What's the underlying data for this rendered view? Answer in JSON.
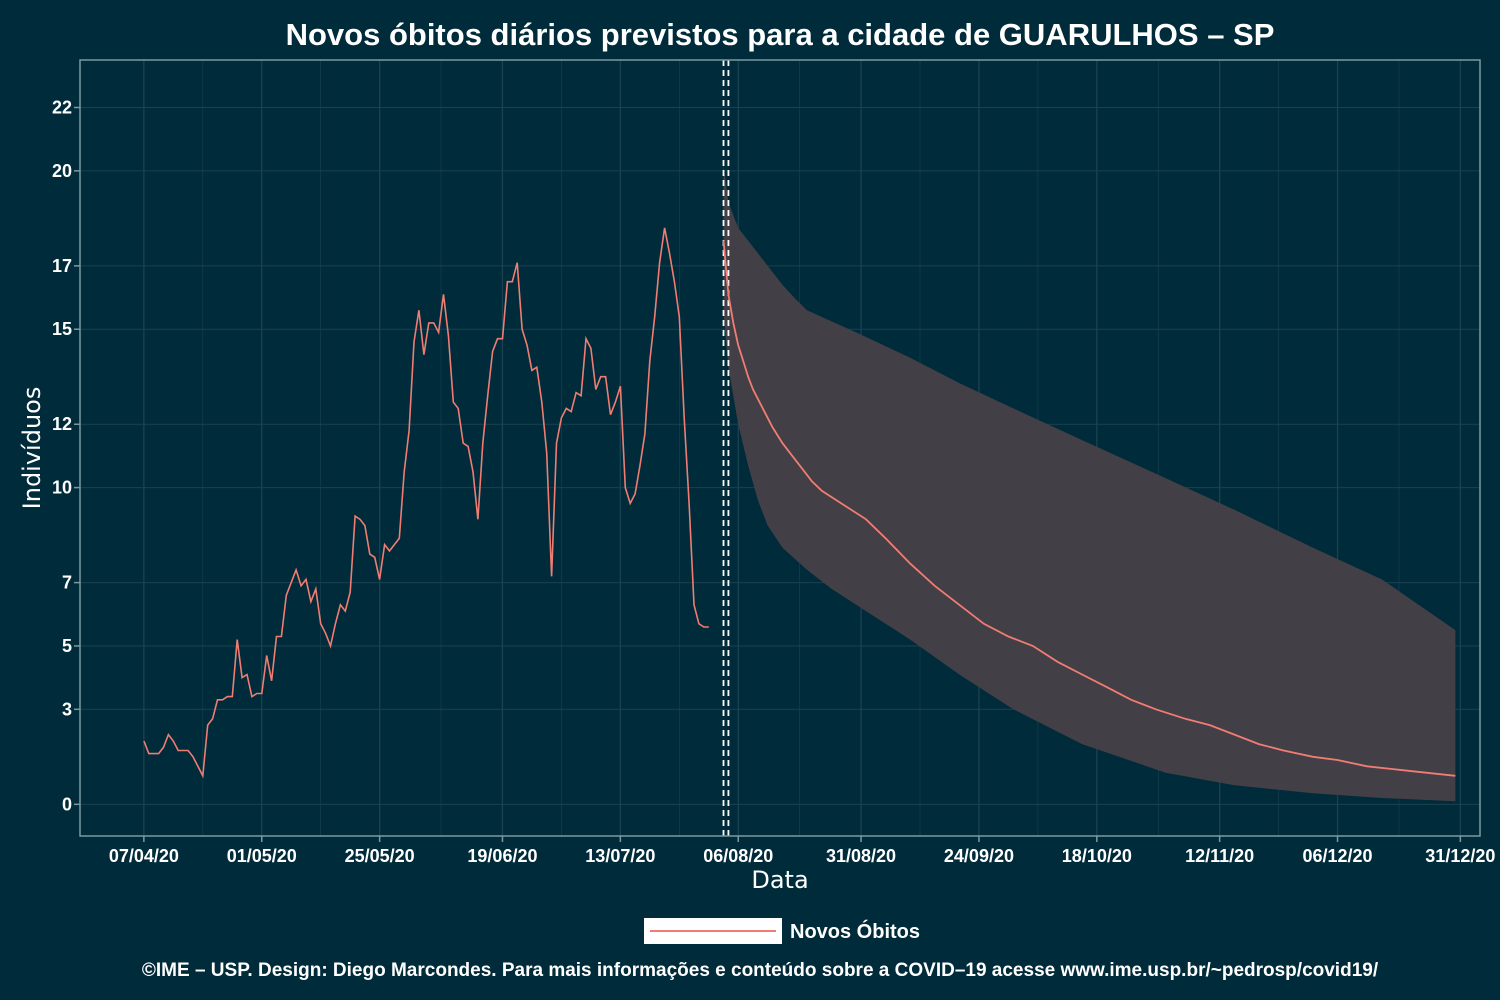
{
  "chart_data": {
    "type": "line",
    "title": "Novos óbitos diários previstos para a cidade de GUARULHOS – SP",
    "xlabel": "Data",
    "ylabel": "Indivíduos",
    "x_date_format": "dd/mm/yy",
    "xlim": [
      "2020-03-25",
      "2021-01-04"
    ],
    "ylim": [
      -1,
      23.5
    ],
    "x_ticks": [
      {
        "date": "2020-04-07",
        "label": "07/04/20"
      },
      {
        "date": "2020-05-01",
        "label": "01/05/20"
      },
      {
        "date": "2020-05-25",
        "label": "25/05/20"
      },
      {
        "date": "2020-06-19",
        "label": "19/06/20"
      },
      {
        "date": "2020-07-13",
        "label": "13/07/20"
      },
      {
        "date": "2020-08-06",
        "label": "06/08/20"
      },
      {
        "date": "2020-08-31",
        "label": "31/08/20"
      },
      {
        "date": "2020-09-24",
        "label": "24/09/20"
      },
      {
        "date": "2020-10-18",
        "label": "18/10/20"
      },
      {
        "date": "2020-11-12",
        "label": "12/11/20"
      },
      {
        "date": "2020-12-06",
        "label": "06/12/20"
      },
      {
        "date": "2020-12-31",
        "label": "31/12/20"
      }
    ],
    "y_ticks": [
      {
        "value": 0,
        "label": "0"
      },
      {
        "value": 3,
        "label": "3"
      },
      {
        "value": 5,
        "label": "5"
      },
      {
        "value": 7,
        "label": "7"
      },
      {
        "value": 10,
        "label": "10"
      },
      {
        "value": 12,
        "label": "12"
      },
      {
        "value": 15,
        "label": "15"
      },
      {
        "value": 17,
        "label": "17"
      },
      {
        "value": 20,
        "label": "20"
      },
      {
        "value": 22,
        "label": "22"
      }
    ],
    "vlines": [
      "2020-08-03",
      "2020-08-04"
    ],
    "legend": {
      "position": "bottom",
      "label": "Novos Óbitos"
    },
    "colors": {
      "background": "#002b3a",
      "line": "#f07d73",
      "band": "#433f46",
      "grid": "#1b4250",
      "axis": "#7b9aa0",
      "vline": "#ffffff"
    },
    "series": [
      {
        "name": "Novos Óbitos",
        "points": [
          [
            "2020-04-07",
            2.0
          ],
          [
            "2020-04-08",
            1.6
          ],
          [
            "2020-04-09",
            1.6
          ],
          [
            "2020-04-10",
            1.6
          ],
          [
            "2020-04-11",
            1.8
          ],
          [
            "2020-04-12",
            2.2
          ],
          [
            "2020-04-13",
            2.0
          ],
          [
            "2020-04-14",
            1.7
          ],
          [
            "2020-04-15",
            1.7
          ],
          [
            "2020-04-16",
            1.7
          ],
          [
            "2020-04-17",
            1.5
          ],
          [
            "2020-04-18",
            1.2
          ],
          [
            "2020-04-19",
            0.9
          ],
          [
            "2020-04-20",
            2.5
          ],
          [
            "2020-04-21",
            2.7
          ],
          [
            "2020-04-22",
            3.3
          ],
          [
            "2020-04-23",
            3.3
          ],
          [
            "2020-04-24",
            3.4
          ],
          [
            "2020-04-25",
            3.4
          ],
          [
            "2020-04-26",
            5.2
          ],
          [
            "2020-04-27",
            4.0
          ],
          [
            "2020-04-28",
            4.1
          ],
          [
            "2020-04-29",
            3.4
          ],
          [
            "2020-04-30",
            3.5
          ],
          [
            "2020-05-01",
            3.5
          ],
          [
            "2020-05-02",
            4.7
          ],
          [
            "2020-05-03",
            3.9
          ],
          [
            "2020-05-04",
            5.3
          ],
          [
            "2020-05-05",
            5.3
          ],
          [
            "2020-05-06",
            6.6
          ],
          [
            "2020-05-07",
            7.0
          ],
          [
            "2020-05-08",
            7.4
          ],
          [
            "2020-05-09",
            6.9
          ],
          [
            "2020-05-10",
            7.1
          ],
          [
            "2020-05-11",
            6.4
          ],
          [
            "2020-05-12",
            6.8
          ],
          [
            "2020-05-13",
            5.7
          ],
          [
            "2020-05-14",
            5.4
          ],
          [
            "2020-05-15",
            5.0
          ],
          [
            "2020-05-16",
            5.7
          ],
          [
            "2020-05-17",
            6.3
          ],
          [
            "2020-05-18",
            6.1
          ],
          [
            "2020-05-19",
            6.7
          ],
          [
            "2020-05-20",
            9.1
          ],
          [
            "2020-05-21",
            9.0
          ],
          [
            "2020-05-22",
            8.8
          ],
          [
            "2020-05-23",
            7.9
          ],
          [
            "2020-05-24",
            7.8
          ],
          [
            "2020-05-25",
            7.1
          ],
          [
            "2020-05-26",
            8.2
          ],
          [
            "2020-05-27",
            8.0
          ],
          [
            "2020-05-28",
            8.2
          ],
          [
            "2020-05-29",
            8.4
          ],
          [
            "2020-05-30",
            10.5
          ],
          [
            "2020-05-31",
            11.8
          ],
          [
            "2020-06-01",
            14.6
          ],
          [
            "2020-06-02",
            15.6
          ],
          [
            "2020-06-03",
            14.2
          ],
          [
            "2020-06-04",
            15.2
          ],
          [
            "2020-06-05",
            15.2
          ],
          [
            "2020-06-06",
            14.9
          ],
          [
            "2020-06-07",
            16.1
          ],
          [
            "2020-06-08",
            14.8
          ],
          [
            "2020-06-09",
            12.7
          ],
          [
            "2020-06-10",
            12.5
          ],
          [
            "2020-06-11",
            11.4
          ],
          [
            "2020-06-12",
            11.3
          ],
          [
            "2020-06-13",
            10.5
          ],
          [
            "2020-06-14",
            9.0
          ],
          [
            "2020-06-15",
            11.4
          ],
          [
            "2020-06-16",
            12.9
          ],
          [
            "2020-06-17",
            14.3
          ],
          [
            "2020-06-18",
            14.7
          ],
          [
            "2020-06-19",
            14.7
          ],
          [
            "2020-06-20",
            16.5
          ],
          [
            "2020-06-21",
            16.5
          ],
          [
            "2020-06-22",
            17.1
          ],
          [
            "2020-06-23",
            15.0
          ],
          [
            "2020-06-24",
            14.5
          ],
          [
            "2020-06-25",
            13.7
          ],
          [
            "2020-06-26",
            13.8
          ],
          [
            "2020-06-27",
            12.7
          ],
          [
            "2020-06-28",
            11.1
          ],
          [
            "2020-06-29",
            7.2
          ],
          [
            "2020-06-30",
            11.4
          ],
          [
            "2020-07-01",
            12.2
          ],
          [
            "2020-07-02",
            12.5
          ],
          [
            "2020-07-03",
            12.4
          ],
          [
            "2020-07-04",
            13.0
          ],
          [
            "2020-07-05",
            12.9
          ],
          [
            "2020-07-06",
            14.7
          ],
          [
            "2020-07-07",
            14.4
          ],
          [
            "2020-07-08",
            13.1
          ],
          [
            "2020-07-09",
            13.5
          ],
          [
            "2020-07-10",
            13.5
          ],
          [
            "2020-07-11",
            12.3
          ],
          [
            "2020-07-12",
            12.7
          ],
          [
            "2020-07-13",
            13.2
          ],
          [
            "2020-07-14",
            10.0
          ],
          [
            "2020-07-15",
            9.5
          ],
          [
            "2020-07-16",
            9.8
          ],
          [
            "2020-07-17",
            10.7
          ],
          [
            "2020-07-18",
            11.7
          ],
          [
            "2020-07-19",
            14.0
          ],
          [
            "2020-07-20",
            15.4
          ],
          [
            "2020-07-21",
            17.1
          ],
          [
            "2020-07-22",
            18.2
          ],
          [
            "2020-07-23",
            17.4
          ],
          [
            "2020-07-24",
            16.5
          ],
          [
            "2020-07-25",
            15.4
          ],
          [
            "2020-07-26",
            12.2
          ],
          [
            "2020-07-27",
            9.5
          ],
          [
            "2020-07-28",
            6.3
          ],
          [
            "2020-07-29",
            5.7
          ],
          [
            "2020-07-30",
            5.6
          ],
          [
            "2020-07-31",
            5.6
          ]
        ]
      },
      {
        "name": "Previsão",
        "points": [
          [
            "2020-08-03",
            17.8
          ],
          [
            "2020-08-04",
            16.1
          ],
          [
            "2020-08-05",
            15.2
          ],
          [
            "2020-08-06",
            14.5
          ],
          [
            "2020-08-07",
            14.0
          ],
          [
            "2020-08-08",
            13.5
          ],
          [
            "2020-08-09",
            13.1
          ],
          [
            "2020-08-10",
            12.8
          ],
          [
            "2020-08-11",
            12.5
          ],
          [
            "2020-08-12",
            12.2
          ],
          [
            "2020-08-13",
            11.9
          ],
          [
            "2020-08-15",
            11.4
          ],
          [
            "2020-08-17",
            11.0
          ],
          [
            "2020-08-19",
            10.6
          ],
          [
            "2020-08-21",
            10.2
          ],
          [
            "2020-08-23",
            9.9
          ],
          [
            "2020-08-25",
            9.7
          ],
          [
            "2020-08-28",
            9.4
          ],
          [
            "2020-09-01",
            9.0
          ],
          [
            "2020-09-05",
            8.4
          ],
          [
            "2020-09-10",
            7.6
          ],
          [
            "2020-09-15",
            6.9
          ],
          [
            "2020-09-20",
            6.3
          ],
          [
            "2020-09-25",
            5.7
          ],
          [
            "2020-09-30",
            5.3
          ],
          [
            "2020-10-05",
            5.0
          ],
          [
            "2020-10-10",
            4.5
          ],
          [
            "2020-10-15",
            4.1
          ],
          [
            "2020-10-20",
            3.7
          ],
          [
            "2020-10-25",
            3.3
          ],
          [
            "2020-10-30",
            3.0
          ],
          [
            "2020-11-05",
            2.7
          ],
          [
            "2020-11-10",
            2.5
          ],
          [
            "2020-11-15",
            2.2
          ],
          [
            "2020-11-20",
            1.9
          ],
          [
            "2020-11-25",
            1.7
          ],
          [
            "2020-12-01",
            1.5
          ],
          [
            "2020-12-06",
            1.4
          ],
          [
            "2020-12-12",
            1.2
          ],
          [
            "2020-12-18",
            1.1
          ],
          [
            "2020-12-24",
            1.0
          ],
          [
            "2020-12-30",
            0.9
          ]
        ]
      }
    ],
    "band": {
      "upper": [
        [
          "2020-08-03",
          20.2
        ],
        [
          "2020-08-04",
          19.0
        ],
        [
          "2020-08-06",
          18.2
        ],
        [
          "2020-08-09",
          17.6
        ],
        [
          "2020-08-12",
          17.0
        ],
        [
          "2020-08-15",
          16.4
        ],
        [
          "2020-08-18",
          15.9
        ],
        [
          "2020-08-20",
          15.6
        ],
        [
          "2020-08-30",
          14.9
        ],
        [
          "2020-09-10",
          14.1
        ],
        [
          "2020-09-20",
          13.3
        ],
        [
          "2020-10-01",
          12.5
        ],
        [
          "2020-10-15",
          11.5
        ],
        [
          "2020-11-01",
          10.3
        ],
        [
          "2020-11-15",
          9.3
        ],
        [
          "2020-12-01",
          8.1
        ],
        [
          "2020-12-15",
          7.1
        ],
        [
          "2020-12-30",
          5.5
        ]
      ],
      "lower": [
        [
          "2020-08-03",
          15.5
        ],
        [
          "2020-08-04",
          13.8
        ],
        [
          "2020-08-06",
          12.0
        ],
        [
          "2020-08-08",
          10.7
        ],
        [
          "2020-08-10",
          9.6
        ],
        [
          "2020-08-12",
          8.8
        ],
        [
          "2020-08-15",
          8.1
        ],
        [
          "2020-08-20",
          7.4
        ],
        [
          "2020-08-25",
          6.8
        ],
        [
          "2020-09-01",
          6.1
        ],
        [
          "2020-09-10",
          5.2
        ],
        [
          "2020-09-20",
          4.1
        ],
        [
          "2020-10-01",
          3.0
        ],
        [
          "2020-10-15",
          1.9
        ],
        [
          "2020-11-01",
          1.0
        ],
        [
          "2020-11-15",
          0.6
        ],
        [
          "2020-12-01",
          0.35
        ],
        [
          "2020-12-15",
          0.2
        ],
        [
          "2020-12-30",
          0.1
        ]
      ]
    }
  },
  "caption": "©IME – USP. Design: Diego Marcondes. Para mais informações e conteúdo sobre a COVID–19 acesse www.ime.usp.br/~pedrosp/covid19/"
}
